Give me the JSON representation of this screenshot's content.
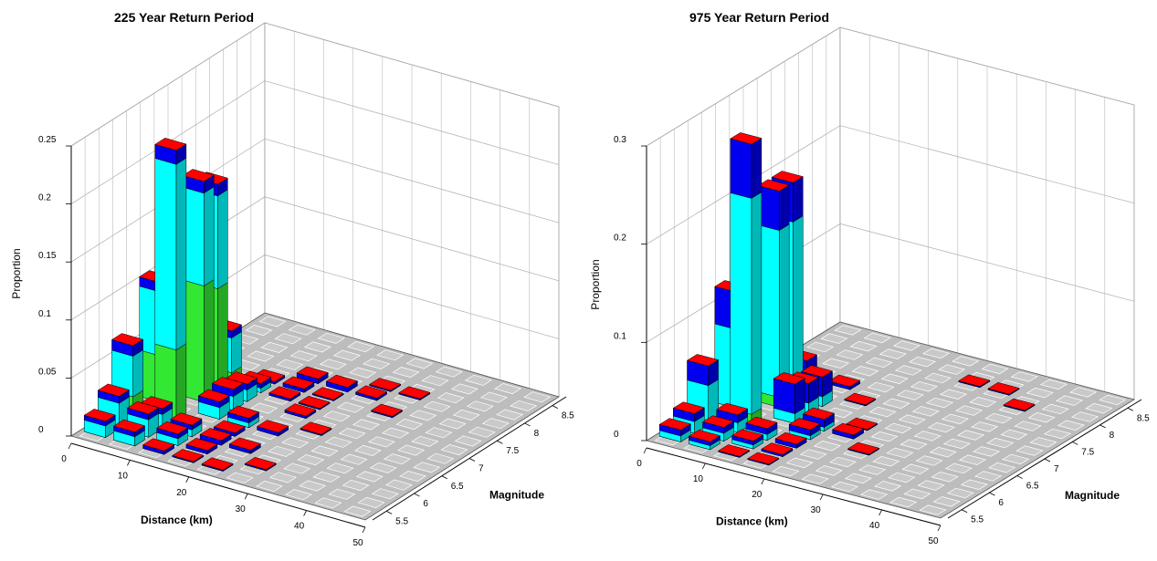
{
  "chart_data": [
    {
      "type": "bar3d",
      "title": "225 Year Return Period",
      "x_label": "Distance (km)",
      "y_label": "Magnitude",
      "z_label": "Proportion",
      "xlim": [
        0,
        50
      ],
      "xticks": [
        0,
        10,
        20,
        30,
        40,
        50
      ],
      "ylim": [
        5.25,
        8.75
      ],
      "yticks": [
        5.5,
        6,
        6.5,
        7,
        7.5,
        8,
        8.5
      ],
      "zlim": [
        0,
        0.25
      ],
      "zticks": [
        0,
        0.05,
        0.1,
        0.15,
        0.2,
        0.25
      ],
      "colors": [
        "#33e833",
        "#00ffff",
        "#0000ee"
      ],
      "top_color": "#ff0000",
      "bars": [
        {
          "distance": 27.5,
          "magnitude": 8.0,
          "values": [
            0,
            0,
            0.001
          ]
        },
        {
          "distance": 32.5,
          "magnitude": 8.0,
          "values": [
            0,
            0,
            0.001
          ]
        },
        {
          "distance": 17.5,
          "magnitude": 7.75,
          "values": [
            0,
            0,
            0.004
          ]
        },
        {
          "distance": 22.5,
          "magnitude": 7.75,
          "values": [
            0,
            0,
            0.004
          ]
        },
        {
          "distance": 27.5,
          "magnitude": 7.75,
          "values": [
            0,
            0,
            0.002
          ]
        },
        {
          "distance": 12.5,
          "magnitude": 7.5,
          "values": [
            0,
            0,
            0.002
          ]
        },
        {
          "distance": 17.5,
          "magnitude": 7.5,
          "values": [
            0,
            0,
            0.003
          ]
        },
        {
          "distance": 22.5,
          "magnitude": 7.5,
          "values": [
            0,
            0,
            0.001
          ]
        },
        {
          "distance": 32.5,
          "magnitude": 7.5,
          "values": [
            0,
            0,
            0.001
          ]
        },
        {
          "distance": 7.5,
          "magnitude": 7.25,
          "values": [
            0.01,
            0.03,
            0.006
          ]
        },
        {
          "distance": 12.5,
          "magnitude": 7.25,
          "values": [
            0,
            0.004,
            0.004
          ]
        },
        {
          "distance": 17.5,
          "magnitude": 7.25,
          "values": [
            0,
            0,
            0.002
          ]
        },
        {
          "distance": 22.5,
          "magnitude": 7.25,
          "values": [
            0,
            0,
            0.001
          ]
        },
        {
          "distance": 7.5,
          "magnitude": 7.0,
          "values": [
            0.09,
            0.08,
            0.01
          ]
        },
        {
          "distance": 12.5,
          "magnitude": 7.0,
          "values": [
            0,
            0.01,
            0.005
          ]
        },
        {
          "distance": 22.5,
          "magnitude": 7.0,
          "values": [
            0,
            0,
            0.002
          ]
        },
        {
          "distance": 7.5,
          "magnitude": 6.75,
          "values": [
            0.1,
            0.08,
            0.01
          ]
        },
        {
          "distance": 12.5,
          "magnitude": 6.75,
          "values": [
            0,
            0.012,
            0.006
          ]
        },
        {
          "distance": 27.5,
          "magnitude": 6.75,
          "values": [
            0,
            0,
            0.001
          ]
        },
        {
          "distance": 2.5,
          "magnitude": 6.5,
          "values": [
            0.04,
            0.055,
            0.008
          ]
        },
        {
          "distance": 12.5,
          "magnitude": 6.5,
          "values": [
            0,
            0.01,
            0.005
          ]
        },
        {
          "distance": 17.5,
          "magnitude": 6.5,
          "values": [
            0,
            0.004,
            0.004
          ]
        },
        {
          "distance": 22.5,
          "magnitude": 6.5,
          "values": [
            0,
            0,
            0.003
          ]
        },
        {
          "distance": 7.5,
          "magnitude": 6.25,
          "values": [
            0.06,
            0.16,
            0.012
          ]
        },
        {
          "distance": 17.5,
          "magnitude": 6.25,
          "values": [
            0,
            0,
            0.003
          ]
        },
        {
          "distance": 2.5,
          "magnitude": 6.0,
          "values": [
            0.02,
            0.035,
            0.009
          ]
        },
        {
          "distance": 7.5,
          "magnitude": 6.0,
          "values": [
            0,
            0.012,
            0.005
          ]
        },
        {
          "distance": 12.5,
          "magnitude": 6.0,
          "values": [
            0,
            0.006,
            0.004
          ]
        },
        {
          "distance": 17.5,
          "magnitude": 6.0,
          "values": [
            0,
            0,
            0.004
          ]
        },
        {
          "distance": 22.5,
          "magnitude": 6.0,
          "values": [
            0,
            0,
            0.003
          ]
        },
        {
          "distance": 2.5,
          "magnitude": 5.75,
          "values": [
            0,
            0.022,
            0.006
          ]
        },
        {
          "distance": 7.5,
          "magnitude": 5.75,
          "values": [
            0,
            0.015,
            0.005
          ]
        },
        {
          "distance": 12.5,
          "magnitude": 5.75,
          "values": [
            0,
            0.006,
            0.004
          ]
        },
        {
          "distance": 17.5,
          "magnitude": 5.75,
          "values": [
            0,
            0,
            0.003
          ]
        },
        {
          "distance": 27.5,
          "magnitude": 5.75,
          "values": [
            0,
            0,
            0.001
          ]
        },
        {
          "distance": 2.5,
          "magnitude": 5.5,
          "values": [
            0,
            0.01,
            0.004
          ]
        },
        {
          "distance": 7.5,
          "magnitude": 5.5,
          "values": [
            0,
            0.008,
            0.004
          ]
        },
        {
          "distance": 12.5,
          "magnitude": 5.5,
          "values": [
            0,
            0,
            0.003
          ]
        },
        {
          "distance": 17.5,
          "magnitude": 5.5,
          "values": [
            0,
            0,
            0.001
          ]
        },
        {
          "distance": 22.5,
          "magnitude": 5.5,
          "values": [
            0,
            0,
            0.001
          ]
        }
      ]
    },
    {
      "type": "bar3d",
      "title": "975 Year Return Period",
      "x_label": "Distance (km)",
      "y_label": "Magnitude",
      "z_label": "Proportion",
      "xlim": [
        0,
        50
      ],
      "xticks": [
        0,
        10,
        20,
        30,
        40,
        50
      ],
      "ylim": [
        5.25,
        8.75
      ],
      "yticks": [
        5.5,
        6,
        6.5,
        7,
        7.5,
        8,
        8.5
      ],
      "zlim": [
        0,
        0.3
      ],
      "zticks": [
        0,
        0.1,
        0.2,
        0.3
      ],
      "colors": [
        "#33e833",
        "#00ffff",
        "#0000ee"
      ],
      "top_color": "#ff0000",
      "bars": [
        {
          "distance": 27.5,
          "magnitude": 8.25,
          "values": [
            0,
            0,
            0.001
          ]
        },
        {
          "distance": 32.5,
          "magnitude": 8.25,
          "values": [
            0,
            0,
            0.001
          ]
        },
        {
          "distance": 37.5,
          "magnitude": 8.0,
          "values": [
            0,
            0,
            0.001
          ]
        },
        {
          "distance": 12.5,
          "magnitude": 7.5,
          "values": [
            0,
            0,
            0.003
          ]
        },
        {
          "distance": 7.5,
          "magnitude": 7.25,
          "values": [
            0,
            0.01,
            0.02
          ]
        },
        {
          "distance": 17.5,
          "magnitude": 7.25,
          "values": [
            0,
            0,
            0.001
          ]
        },
        {
          "distance": 7.5,
          "magnitude": 7.0,
          "values": [
            0.01,
            0.17,
            0.04
          ]
        },
        {
          "distance": 12.5,
          "magnitude": 7.0,
          "values": [
            0,
            0.01,
            0.02
          ]
        },
        {
          "distance": 7.5,
          "magnitude": 6.75,
          "values": [
            0.01,
            0.17,
            0.04
          ]
        },
        {
          "distance": 12.5,
          "magnitude": 6.75,
          "values": [
            0,
            0.012,
            0.02
          ]
        },
        {
          "distance": 22.5,
          "magnitude": 6.75,
          "values": [
            0,
            0,
            0.001
          ]
        },
        {
          "distance": 2.5,
          "magnitude": 6.5,
          "values": [
            0,
            0.08,
            0.038
          ]
        },
        {
          "distance": 12.5,
          "magnitude": 6.5,
          "values": [
            0,
            0.01,
            0.03
          ]
        },
        {
          "distance": 17.5,
          "magnitude": 6.5,
          "values": [
            0,
            0.004,
            0.008
          ]
        },
        {
          "distance": 22.5,
          "magnitude": 6.5,
          "values": [
            0,
            0,
            0.004
          ]
        },
        {
          "distance": 7.5,
          "magnitude": 6.25,
          "values": [
            0.01,
            0.22,
            0.055
          ]
        },
        {
          "distance": 17.5,
          "magnitude": 6.25,
          "values": [
            0,
            0.004,
            0.006
          ]
        },
        {
          "distance": 27.5,
          "magnitude": 6.25,
          "values": [
            0,
            0,
            0.001
          ]
        },
        {
          "distance": 2.5,
          "magnitude": 6.0,
          "values": [
            0,
            0.04,
            0.02
          ]
        },
        {
          "distance": 7.5,
          "magnitude": 6.0,
          "values": [
            0,
            0.01,
            0.008
          ]
        },
        {
          "distance": 12.5,
          "magnitude": 6.0,
          "values": [
            0,
            0.006,
            0.006
          ]
        },
        {
          "distance": 17.5,
          "magnitude": 6.0,
          "values": [
            0,
            0,
            0.004
          ]
        },
        {
          "distance": 2.5,
          "magnitude": 5.75,
          "values": [
            0,
            0.012,
            0.008
          ]
        },
        {
          "distance": 7.5,
          "magnitude": 5.75,
          "values": [
            0,
            0.008,
            0.006
          ]
        },
        {
          "distance": 12.5,
          "magnitude": 5.75,
          "values": [
            0,
            0.004,
            0.004
          ]
        },
        {
          "distance": 17.5,
          "magnitude": 5.75,
          "values": [
            0,
            0,
            0.002
          ]
        },
        {
          "distance": 2.5,
          "magnitude": 5.5,
          "values": [
            0,
            0.006,
            0.006
          ]
        },
        {
          "distance": 7.5,
          "magnitude": 5.5,
          "values": [
            0,
            0.004,
            0.004
          ]
        },
        {
          "distance": 12.5,
          "magnitude": 5.5,
          "values": [
            0,
            0,
            0.001
          ]
        },
        {
          "distance": 17.5,
          "magnitude": 5.5,
          "values": [
            0,
            0,
            0.001
          ]
        }
      ]
    }
  ]
}
